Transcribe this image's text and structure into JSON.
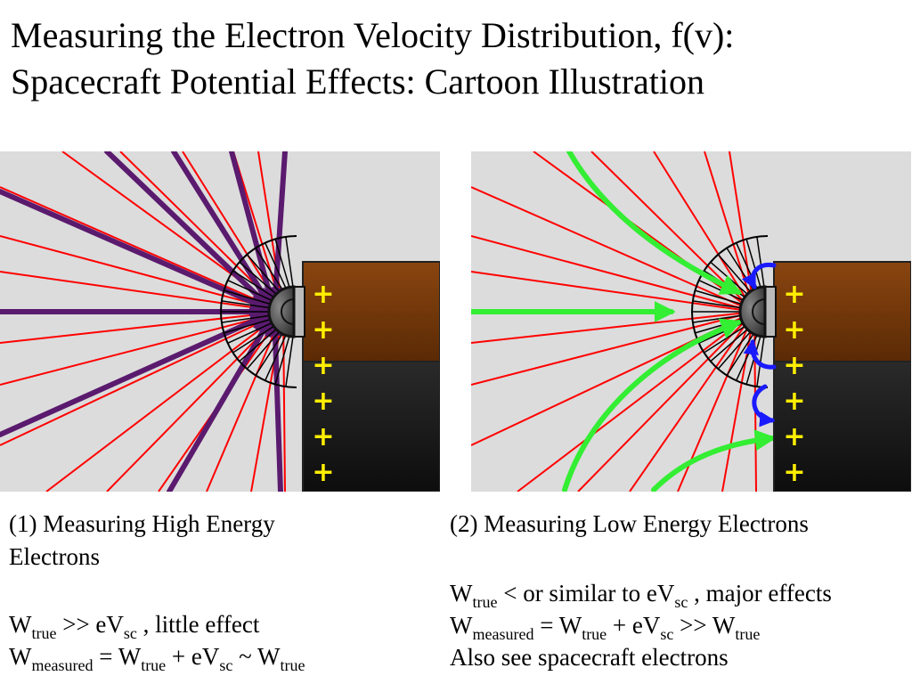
{
  "title": {
    "line1": "Measuring the Electron Velocity Distribution, f(v):",
    "line2": "Spacecraft Potential Effects: Cartoon Illustration"
  },
  "colors": {
    "background": "#dcdcdc",
    "field_lines": "#ff0000",
    "high_energy_trajectories": "#5a1a6e",
    "low_energy_trajectories": "#33ee33",
    "spacecraft_electrons": "#1a1aff",
    "spacecraft_upper": "#7a3a0a",
    "spacecraft_lower": "#1a1a1a",
    "charge_symbol": "#ffee00"
  },
  "diagram": {
    "charge_symbol": "+",
    "charge_count": 6
  },
  "panel1": {
    "caption_line1": "(1) Measuring High Energy",
    "caption_line2": "Electrons",
    "eq1": {
      "a": "W",
      "a_sub": "true",
      "b": " >> eV",
      "b_sub": "sc",
      "c": " , little effect"
    },
    "eq2": {
      "a": "W",
      "a_sub": "measured",
      "b": " = W",
      "b_sub": "true",
      "c": " + eV",
      "c_sub": "sc",
      "d": " ~ W",
      "d_sub": "true"
    }
  },
  "panel2": {
    "caption": "(2) Measuring Low Energy Electrons",
    "eq1": {
      "a": "W",
      "a_sub": "true",
      "b": " < or similar to eV",
      "b_sub": "sc",
      "c": " , major effects"
    },
    "eq2": {
      "a": "W",
      "a_sub": "measured",
      "b": " = W",
      "b_sub": "true",
      "c": " + eV",
      "c_sub": "sc",
      "d": " >> W",
      "d_sub": "true"
    },
    "eq3": "Also see spacecraft electrons"
  }
}
